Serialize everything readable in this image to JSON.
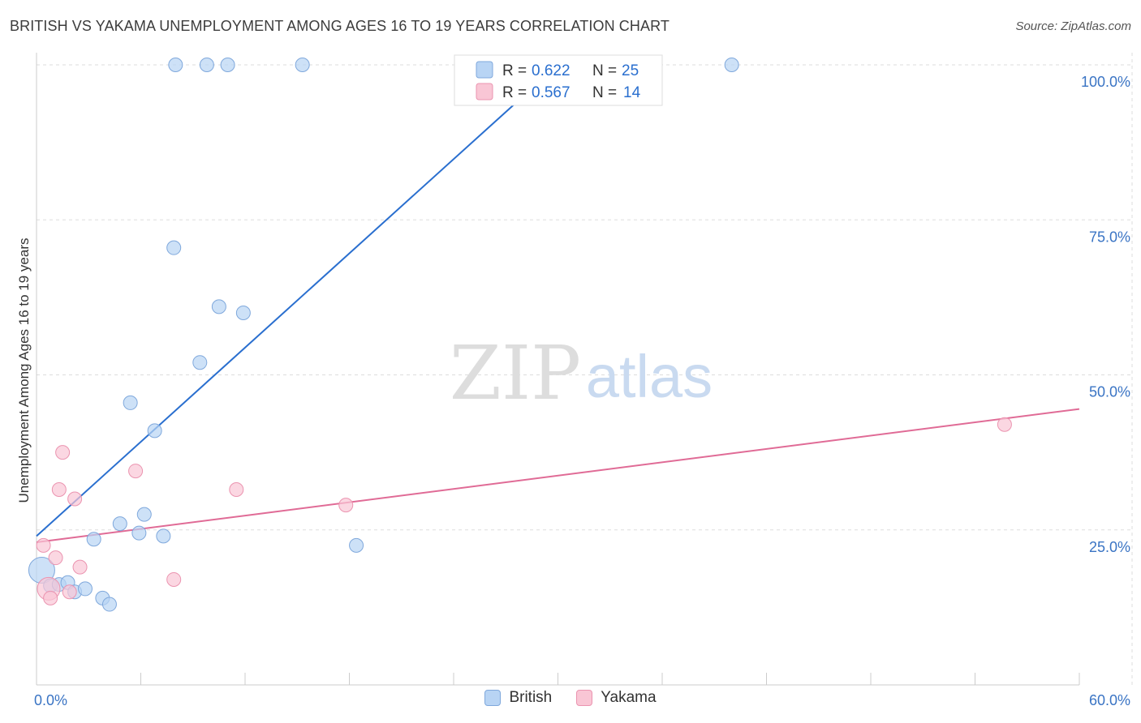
{
  "title": "BRITISH VS YAKAMA UNEMPLOYMENT AMONG AGES 16 TO 19 YEARS CORRELATION CHART",
  "source": "Source: ZipAtlas.com",
  "watermark": {
    "zip": "ZIP",
    "atlas": "atlas"
  },
  "legend": {
    "items": [
      {
        "r_label": "R = ",
        "r_value": "0.622",
        "n_label": "N = ",
        "n_value": "25"
      },
      {
        "r_label": "R = ",
        "r_value": "0.567",
        "n_label": "N = ",
        "n_value": "14"
      }
    ]
  },
  "bottom_legend": {
    "british": "British",
    "yakama": "Yakama"
  },
  "colors": {
    "british_fill": "#b8d4f4",
    "british_stroke": "#7fa8dc",
    "british_line": "#2a6fcf",
    "yakama_fill": "#f9c6d5",
    "yakama_stroke": "#eb94b0",
    "yakama_line": "#e06b96",
    "axis_label": "#3a74c4",
    "grid": "#dddddd"
  },
  "chart_data": {
    "type": "scatter",
    "title": "BRITISH VS YAKAMA UNEMPLOYMENT AMONG AGES 16 TO 19 YEARS CORRELATION CHART",
    "xlabel": "",
    "ylabel": "Unemployment Among Ages 16 to 19 years",
    "xlim": [
      0,
      60
    ],
    "ylim": [
      0,
      105
    ],
    "x_tick_labels": [
      "0.0%",
      "60.0%"
    ],
    "y_ticks": [
      25,
      50,
      75,
      100
    ],
    "y_tick_labels": [
      "25.0%",
      "50.0%",
      "75.0%",
      "100.0%"
    ],
    "grid": true,
    "series": [
      {
        "name": "British",
        "r": 0.622,
        "n": 25,
        "points": [
          {
            "x": 0.3,
            "y": 18.5,
            "big": true
          },
          {
            "x": 0.8,
            "y": 16.0
          },
          {
            "x": 1.3,
            "y": 16.2
          },
          {
            "x": 1.8,
            "y": 16.5
          },
          {
            "x": 2.2,
            "y": 15.0
          },
          {
            "x": 2.8,
            "y": 15.5
          },
          {
            "x": 3.3,
            "y": 23.5
          },
          {
            "x": 3.8,
            "y": 14.0
          },
          {
            "x": 4.2,
            "y": 13.0
          },
          {
            "x": 4.8,
            "y": 26.0
          },
          {
            "x": 5.4,
            "y": 45.5
          },
          {
            "x": 5.9,
            "y": 24.5
          },
          {
            "x": 6.2,
            "y": 27.5
          },
          {
            "x": 6.8,
            "y": 41.0
          },
          {
            "x": 7.3,
            "y": 24.0
          },
          {
            "x": 7.9,
            "y": 70.5
          },
          {
            "x": 8.0,
            "y": 100.0
          },
          {
            "x": 9.4,
            "y": 52.0
          },
          {
            "x": 9.8,
            "y": 100.0
          },
          {
            "x": 10.5,
            "y": 61.0
          },
          {
            "x": 11.0,
            "y": 100.0
          },
          {
            "x": 11.9,
            "y": 60.0
          },
          {
            "x": 15.3,
            "y": 100.0
          },
          {
            "x": 18.4,
            "y": 22.5
          },
          {
            "x": 40.0,
            "y": 100.0
          }
        ],
        "trend": {
          "x1": 0,
          "y1": 24.0,
          "x2": 30,
          "y2": 100.0
        }
      },
      {
        "name": "Yakama",
        "r": 0.567,
        "n": 14,
        "points": [
          {
            "x": 0.4,
            "y": 22.5
          },
          {
            "x": 0.7,
            "y": 15.5,
            "big": true
          },
          {
            "x": 0.8,
            "y": 14.0
          },
          {
            "x": 1.1,
            "y": 20.5
          },
          {
            "x": 1.3,
            "y": 31.5
          },
          {
            "x": 1.5,
            "y": 37.5
          },
          {
            "x": 1.9,
            "y": 15.0
          },
          {
            "x": 2.2,
            "y": 30.0
          },
          {
            "x": 2.5,
            "y": 19.0
          },
          {
            "x": 5.7,
            "y": 34.5
          },
          {
            "x": 7.9,
            "y": 17.0
          },
          {
            "x": 11.5,
            "y": 31.5
          },
          {
            "x": 17.8,
            "y": 29.0
          },
          {
            "x": 55.7,
            "y": 42.0
          }
        ],
        "trend": {
          "x1": 0,
          "y1": 23.0,
          "x2": 60,
          "y2": 44.5
        }
      }
    ]
  }
}
